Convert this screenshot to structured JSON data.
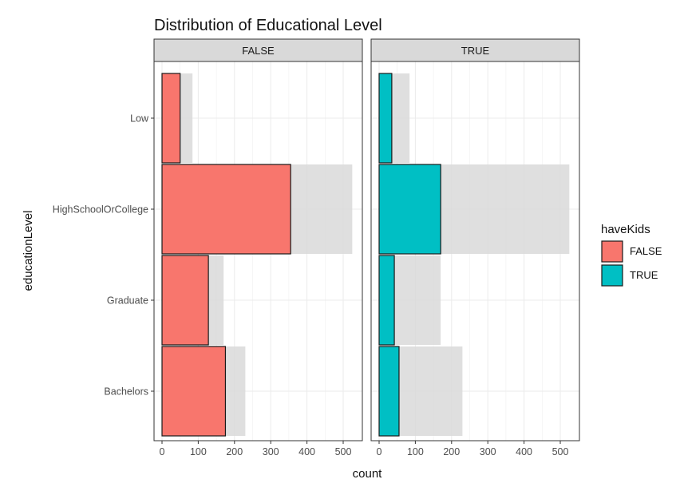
{
  "chart_data": {
    "type": "bar",
    "orientation": "horizontal",
    "title": "Distribution of Educational Level",
    "xlabel": "count",
    "ylabel": "educationLevel",
    "xlim": [
      0,
      530
    ],
    "x_ticks": [
      0,
      100,
      200,
      300,
      400,
      500
    ],
    "categories": [
      "Low",
      "HighSchoolOrCollege",
      "Graduate",
      "Bachelors"
    ],
    "facets": [
      {
        "label": "FALSE",
        "series": [
          {
            "name": "FALSE",
            "values": [
              50,
              355,
              128,
              175
            ],
            "color": "#F8766D"
          }
        ]
      },
      {
        "label": "TRUE",
        "series": [
          {
            "name": "TRUE",
            "values": [
              35,
              170,
              42,
              55
            ],
            "color": "#00BFC4"
          }
        ]
      }
    ],
    "background_totals": [
      84,
      525,
      170,
      230
    ],
    "background_color": "#d9d9d9",
    "legend": {
      "title": "haveKids",
      "position": "right",
      "entries": [
        {
          "label": "FALSE",
          "color": "#F8766D"
        },
        {
          "label": "TRUE",
          "color": "#00BFC4"
        }
      ]
    },
    "grid": true
  }
}
